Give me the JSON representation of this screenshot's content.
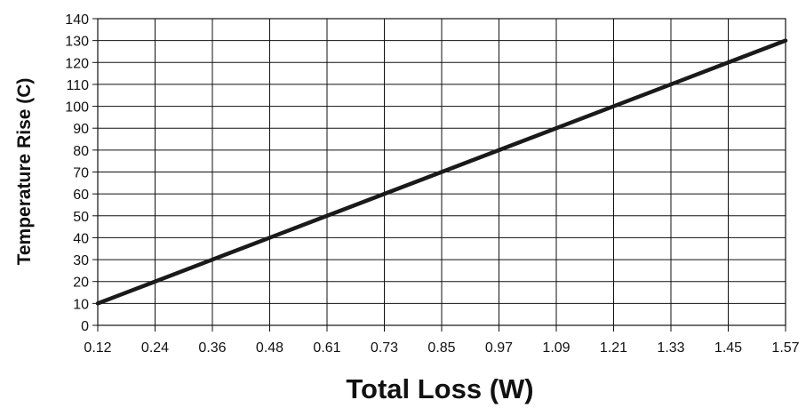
{
  "chart_data": {
    "type": "line",
    "xlabel": "Total Loss (W)",
    "ylabel": "Temperature Rise (C)",
    "x_ticks": [
      "0.12",
      "0.24",
      "0.36",
      "0.48",
      "0.61",
      "0.73",
      "0.85",
      "0.97",
      "1.09",
      "1.21",
      "1.33",
      "1.45",
      "1.57"
    ],
    "y_ticks": [
      "0",
      "10",
      "20",
      "30",
      "40",
      "50",
      "60",
      "70",
      "80",
      "90",
      "100",
      "110",
      "120",
      "130",
      "140"
    ],
    "ylim": [
      0,
      140
    ],
    "grid": true,
    "series": [
      {
        "x": [
          "0.12",
          "0.24",
          "0.36",
          "0.48",
          "0.61",
          "0.73",
          "0.85",
          "0.97",
          "1.09",
          "1.21",
          "1.33",
          "1.45",
          "1.57"
        ],
        "y": [
          10,
          20,
          30,
          40,
          50,
          60,
          70,
          80,
          90,
          100,
          110,
          120,
          130
        ],
        "color": "#1a1a1a"
      }
    ]
  }
}
